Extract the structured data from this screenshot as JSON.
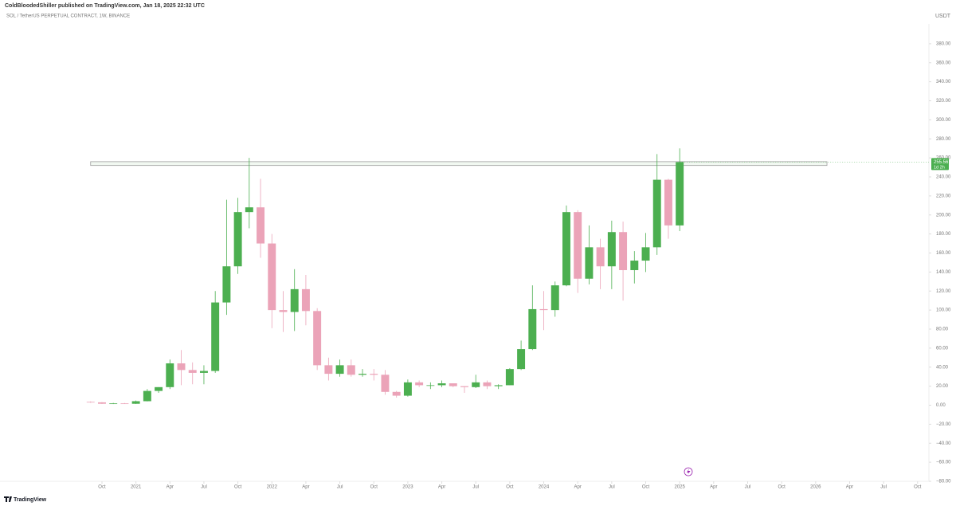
{
  "chart_data": {
    "type": "candlestick",
    "title": "ColdBloodedShiller published on TradingView.com, Jan 18, 2025 22:32 UTC",
    "subtitle": "SOL / TetherUS PERPETUAL CONTRACT, 1W, BINANCE",
    "y_axis_label": "USDT",
    "footer": "TradingView",
    "countdown": "1d 2h",
    "up_color": "#4caf50",
    "down_color": "#eba3b8",
    "zone_color": "#9e9e9e",
    "x": [
      "2020-09",
      "2020-10",
      "2020-11",
      "2020-12",
      "2021-01",
      "2021-02",
      "2021-03",
      "2021-04",
      "2021-05",
      "2021-06",
      "2021-07",
      "2021-08",
      "2021-09",
      "2021-10",
      "2021-11",
      "2021-12",
      "2022-01",
      "2022-02",
      "2022-03",
      "2022-04",
      "2022-05",
      "2022-06",
      "2022-07",
      "2022-08",
      "2022-09",
      "2022-10",
      "2022-11",
      "2022-12",
      "2023-01",
      "2023-02",
      "2023-03",
      "2023-04",
      "2023-05",
      "2023-06",
      "2023-07",
      "2023-08",
      "2023-09",
      "2023-10",
      "2023-11",
      "2023-12",
      "2024-01",
      "2024-02",
      "2024-03",
      "2024-04",
      "2024-05",
      "2024-06",
      "2024-07",
      "2024-08",
      "2024-09",
      "2024-10",
      "2024-11",
      "2024-12",
      "2025-01"
    ],
    "open": [
      3.5,
      3.0,
      1.5,
      1.9,
      1.5,
      4.2,
      15,
      19,
      44,
      37,
      34,
      36,
      108,
      146,
      203,
      208,
      170,
      100,
      98,
      122,
      99,
      42,
      33,
      42,
      32,
      33,
      32,
      14,
      10,
      24,
      21,
      21,
      23,
      20,
      19,
      24,
      20,
      21,
      38,
      59,
      101,
      100,
      126,
      203,
      133,
      166,
      146,
      182,
      142,
      152,
      166,
      237,
      189
    ],
    "high": [
      4,
      3.2,
      2.4,
      2.3,
      4.9,
      17,
      19,
      48,
      58,
      45,
      42,
      120,
      216,
      218,
      260,
      238,
      180,
      120,
      143,
      137,
      102,
      50,
      48,
      48,
      38,
      38,
      37,
      15,
      27,
      26,
      24,
      26,
      23,
      20,
      32,
      26,
      22,
      39,
      68,
      126,
      120,
      130,
      210,
      205,
      189,
      175,
      194,
      193,
      162,
      181,
      264,
      238,
      270
    ],
    "low": [
      2.5,
      1.3,
      1.2,
      1.3,
      1.3,
      4,
      13,
      17,
      21,
      22,
      22,
      34,
      95,
      138,
      186,
      155,
      81,
      77,
      78,
      84,
      37,
      26,
      30,
      30,
      30,
      26,
      11,
      8,
      9,
      19,
      17,
      19,
      19,
      13,
      18,
      17,
      17,
      21,
      37,
      58,
      79,
      93,
      125,
      118,
      127,
      122,
      122,
      110,
      128,
      140,
      158,
      175,
      183
    ],
    "close": [
      3.0,
      1.5,
      1.9,
      1.5,
      4.2,
      15,
      19,
      44,
      37,
      34,
      36,
      108,
      146,
      203,
      208,
      170,
      100,
      98,
      122,
      99,
      42,
      33,
      42,
      32,
      33,
      32,
      14,
      10,
      24,
      21,
      21,
      23,
      20,
      19,
      24,
      20,
      21,
      38,
      59,
      101,
      100,
      126,
      203,
      133,
      166,
      146,
      182,
      142,
      152,
      166,
      237,
      189,
      255.56
    ],
    "resistance_zone": {
      "x": [
        "2020-09",
        "2026-02"
      ],
      "y": [
        252,
        256
      ]
    },
    "xlim": [
      "2020-01",
      "2026-11"
    ],
    "ylim": [
      -80,
      400
    ],
    "xticks": [
      {
        "value": "2020-10",
        "label": "Oct"
      },
      {
        "value": "2021-01",
        "label": "2021"
      },
      {
        "value": "2021-04",
        "label": "Apr"
      },
      {
        "value": "2021-07",
        "label": "Jul"
      },
      {
        "value": "2021-10",
        "label": "Oct"
      },
      {
        "value": "2022-01",
        "label": "2022"
      },
      {
        "value": "2022-04",
        "label": "Apr"
      },
      {
        "value": "2022-07",
        "label": "Jul"
      },
      {
        "value": "2022-10",
        "label": "Oct"
      },
      {
        "value": "2023-01",
        "label": "2023"
      },
      {
        "value": "2023-04",
        "label": "Apr"
      },
      {
        "value": "2023-07",
        "label": "Jul"
      },
      {
        "value": "2023-10",
        "label": "Oct"
      },
      {
        "value": "2024-01",
        "label": "2024"
      },
      {
        "value": "2024-04",
        "label": "Apr"
      },
      {
        "value": "2024-07",
        "label": "Jul"
      },
      {
        "value": "2024-10",
        "label": "Oct"
      },
      {
        "value": "2025-01",
        "label": "2025"
      },
      {
        "value": "2025-04",
        "label": "Apr"
      },
      {
        "value": "2025-07",
        "label": "Jul"
      },
      {
        "value": "2025-10",
        "label": "Oct"
      },
      {
        "value": "2026-01",
        "label": "2026"
      },
      {
        "value": "2026-04",
        "label": "Apr"
      },
      {
        "value": "2026-07",
        "label": "Jul"
      },
      {
        "value": "2026-10",
        "label": "Oct"
      }
    ],
    "yticks": [
      {
        "value": 380,
        "label": "380.00"
      },
      {
        "value": 360,
        "label": "360.00"
      },
      {
        "value": 340,
        "label": "340.00"
      },
      {
        "value": 320,
        "label": "320.00"
      },
      {
        "value": 300,
        "label": "300.00"
      },
      {
        "value": 280,
        "label": "280.00"
      },
      {
        "value": 260,
        "label": "260.00"
      },
      {
        "value": 240,
        "label": "240.00"
      },
      {
        "value": 220,
        "label": "220.00"
      },
      {
        "value": 200,
        "label": "200.00"
      },
      {
        "value": 180,
        "label": "180.00"
      },
      {
        "value": 160,
        "label": "160.00"
      },
      {
        "value": 140,
        "label": "140.00"
      },
      {
        "value": 120,
        "label": "120.00"
      },
      {
        "value": 100,
        "label": "100.00"
      },
      {
        "value": 80,
        "label": "80.00"
      },
      {
        "value": 60,
        "label": "60.00"
      },
      {
        "value": 40,
        "label": "40.00"
      },
      {
        "value": 20,
        "label": "20.00"
      },
      {
        "value": 0,
        "label": "0.00"
      },
      {
        "value": -20,
        "label": "−20.00"
      },
      {
        "value": -40,
        "label": "−40.00"
      },
      {
        "value": -60,
        "label": "−60.00"
      },
      {
        "value": -80,
        "label": "−80.00"
      }
    ]
  }
}
